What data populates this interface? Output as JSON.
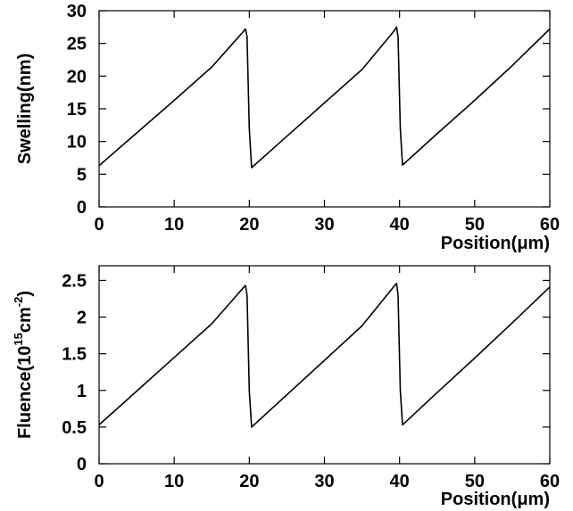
{
  "chart_data": [
    {
      "type": "line",
      "xlabel": "Position(μm)",
      "ylabel": "Swelling(nm)",
      "xlim": [
        0,
        60
      ],
      "ylim": [
        0,
        30
      ],
      "xticks": [
        "0",
        "10",
        "20",
        "30",
        "40",
        "50",
        "60"
      ],
      "yticks": [
        "0",
        "5",
        "10",
        "15",
        "20",
        "25",
        "30"
      ],
      "grid": false,
      "series": [
        {
          "x": [
            0,
            5,
            10,
            15,
            19.2,
            19.5,
            19.7,
            20.0,
            20.3,
            25,
            30,
            35,
            39.2,
            39.6,
            39.8,
            40.1,
            40.4,
            45,
            50,
            55,
            60
          ],
          "values": [
            6.3,
            11.3,
            16.3,
            21.4,
            26.8,
            27.2,
            26.0,
            12.0,
            6.0,
            10.8,
            15.9,
            21.0,
            26.8,
            27.5,
            26.0,
            12.0,
            6.4,
            11.2,
            16.3,
            21.6,
            27.2
          ]
        }
      ]
    },
    {
      "type": "line",
      "xlabel": "Position(μm)",
      "ylabel_parts": [
        "Fluence(10",
        "15",
        "cm",
        "-2",
        ")"
      ],
      "xlim": [
        0,
        60
      ],
      "ylim": [
        0,
        2.7
      ],
      "xticks": [
        "0",
        "10",
        "20",
        "30",
        "40",
        "50",
        "60"
      ],
      "yticks": [
        "0",
        "0.5",
        "1",
        "1.5",
        "2",
        "2.5"
      ],
      "grid": false,
      "series": [
        {
          "x": [
            0,
            5,
            10,
            15,
            19.2,
            19.5,
            19.7,
            20.0,
            20.3,
            25,
            30,
            35,
            39.2,
            39.6,
            39.8,
            40.1,
            40.4,
            45,
            50,
            55,
            60
          ],
          "values": [
            0.53,
            0.99,
            1.45,
            1.91,
            2.4,
            2.43,
            2.3,
            1.0,
            0.5,
            0.94,
            1.41,
            1.88,
            2.41,
            2.46,
            2.3,
            1.0,
            0.53,
            0.97,
            1.44,
            1.92,
            2.41
          ]
        }
      ]
    }
  ]
}
